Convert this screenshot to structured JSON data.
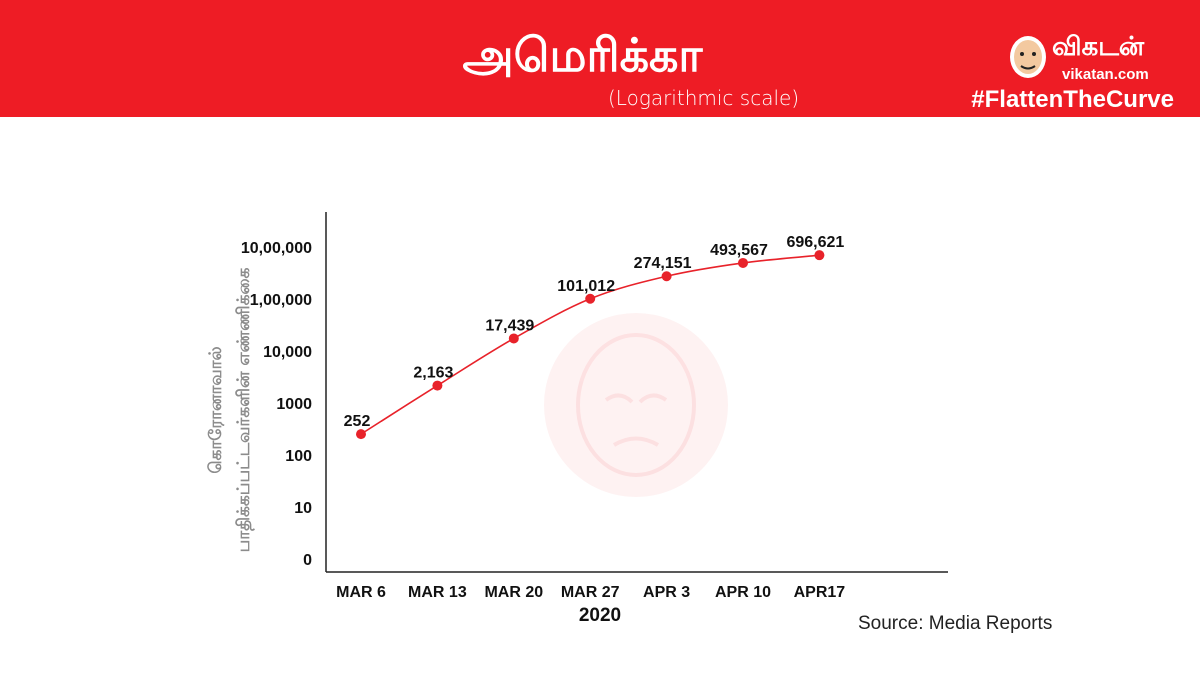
{
  "header": {
    "title": "அமெரிக்கா",
    "subtitle": "(Logarithmic scale)",
    "logo_name": "விகடன்",
    "logo_url": "vikatan.com",
    "hashtag": "#FlattenTheCurve",
    "background_color": "#ee1c25"
  },
  "chart_data": {
    "type": "line",
    "scale": "log",
    "x": [
      "MAR 6",
      "MAR 13",
      "MAR 20",
      "MAR 27",
      "APR 3",
      "APR 10",
      "APR17"
    ],
    "xlabel": "2020",
    "ylabel_lines": [
      "கொரோனாவால்",
      "பாதிக்கப்பட்டவர்களின்  எண்ணிக்கை"
    ],
    "y_ticks": [
      "0",
      "10",
      "100",
      "1000",
      "10,000",
      "1,00,000",
      "10,00,000"
    ],
    "y_tick_values": [
      1,
      10,
      100,
      1000,
      10000,
      100000,
      1000000
    ],
    "values": [
      252,
      2163,
      17439,
      101012,
      274151,
      493567,
      696621
    ],
    "point_labels": [
      "252",
      "2,163",
      "17,439",
      "101,012",
      "274,151",
      "493,567",
      "696,621"
    ],
    "line_color": "#e8222a",
    "grid": false
  },
  "footer": {
    "source": "Source: Media Reports"
  }
}
